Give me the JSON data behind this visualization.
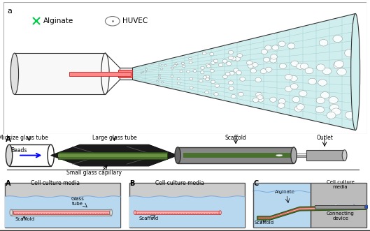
{
  "bg_color": "#ffffff",
  "alginate_color": "#00cc44",
  "huvec_color": "#888888",
  "label_a": "a",
  "label_A": "A",
  "label_B": "B",
  "label_C": "C",
  "text_alginate": "Alginate",
  "text_huvec": "HUVEC",
  "text_midsize": "Midsize glass tube",
  "text_large": "Large glass tube",
  "text_small": "Small glass capillary",
  "text_scaffold": "Scaffold",
  "text_outlet": "Outlet",
  "text_beads": "Beads",
  "text_ccm": "Cell culture media",
  "text_glass_tube": "Glass\ntube",
  "text_alginate2": "Alginate",
  "text_scaffold2": "Scaffold",
  "text_ccm2": "Cell culture\nmedia",
  "text_connecting": "Connecting\ndevice",
  "panel_a_border": "#aaaaaa",
  "tube_edge": "#333333",
  "dark_fill": "#111111",
  "green_dark": "#4a7030",
  "green_med": "#6a9040",
  "gray_fill": "#888888",
  "water_fill": "#b8d8f0",
  "water_edge": "#7aaadd",
  "red_fill": "#ffb0b0",
  "red_edge": "#cc4444",
  "scaffold_bg": "#cccccc"
}
